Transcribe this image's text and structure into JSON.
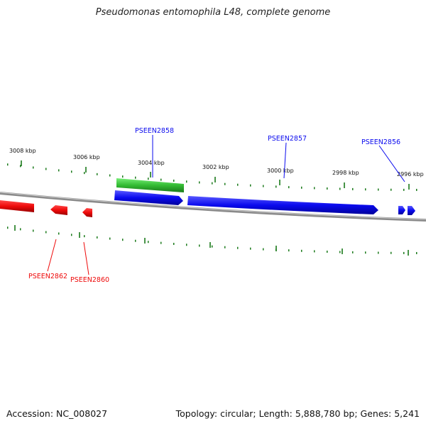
{
  "title": "Pseudomonas entomophila L48, complete genome",
  "footer": {
    "accession": "Accession: NC_008027",
    "topology": "Topology: circular; Length: 5,888,780 bp; Genes: 5,241"
  },
  "scale_labels": [
    "3008 kbp",
    "3006 kbp",
    "3004 kbp",
    "3002 kbp",
    "3000 kbp",
    "2998 kbp",
    "2996 kbp"
  ],
  "gene_labels": [
    "PSEEN2858",
    "PSEEN2857",
    "PSEEN2856",
    "PSEEN2862",
    "PSEEN2860"
  ],
  "colors": {
    "forward_gene": "#0a0aee",
    "reverse_gene": "#ee0a0a",
    "other_feature": "#33bb33",
    "tick": "#1a7a1a",
    "backbone": "#888888"
  }
}
